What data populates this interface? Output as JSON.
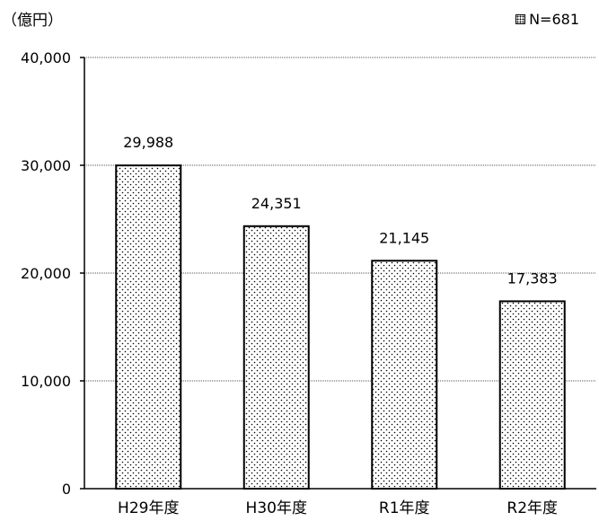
{
  "chart_data": {
    "type": "bar",
    "unit_label": "（億円）",
    "legend": "N=681",
    "categories": [
      "H29年度",
      "H30年度",
      "R1年度",
      "R2年度"
    ],
    "values": [
      29988,
      24351,
      21145,
      17383
    ],
    "data_labels": [
      "29,988",
      "24,351",
      "21,145",
      "17,383"
    ],
    "y_ticks": [
      "0",
      "10,000",
      "20,000",
      "30,000",
      "40,000"
    ],
    "y_tick_values": [
      0,
      10000,
      20000,
      30000,
      40000
    ],
    "ylim": [
      0,
      40000
    ],
    "grid": true,
    "bar_fill": "dotted",
    "legend_position": "top-right"
  }
}
